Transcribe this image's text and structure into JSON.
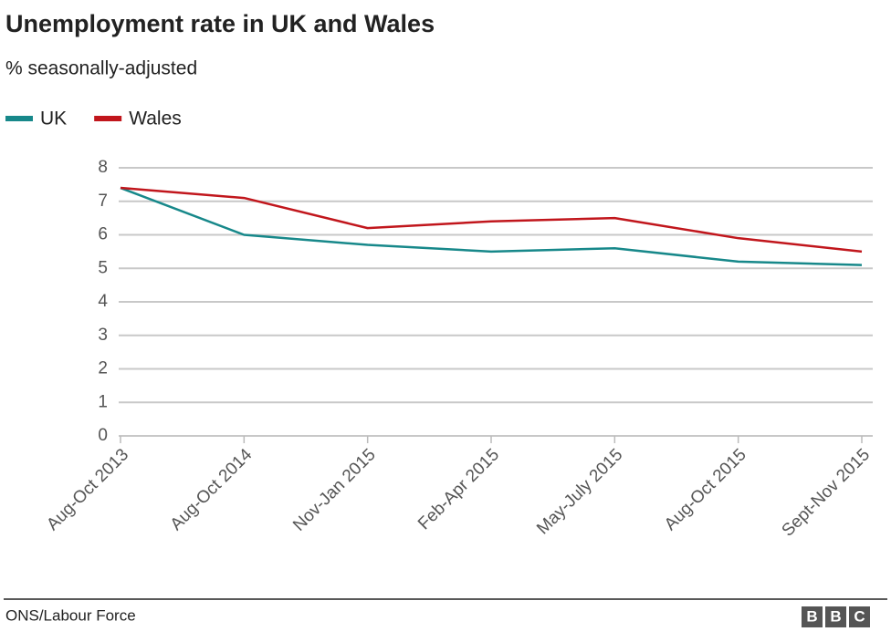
{
  "chart_data": {
    "type": "line",
    "title": "Unemployment rate in UK and Wales",
    "subtitle": "% seasonally-adjusted",
    "categories": [
      "Aug-Oct 2013",
      "Aug-Oct 2014",
      "Nov-Jan 2015",
      "Feb-Apr 2015",
      "May-July 2015",
      "Aug-Oct 2015",
      "Sept-Nov 2015"
    ],
    "series": [
      {
        "name": "UK",
        "color": "#17888a",
        "values": [
          7.4,
          6.0,
          5.7,
          5.5,
          5.6,
          5.2,
          5.1
        ]
      },
      {
        "name": "Wales",
        "color": "#c1161c",
        "values": [
          7.4,
          7.1,
          6.2,
          6.4,
          6.5,
          5.9,
          5.5
        ]
      }
    ],
    "ylim": [
      0,
      8
    ],
    "yticks": [
      0,
      1,
      2,
      3,
      4,
      5,
      6,
      7,
      8
    ],
    "grid": true,
    "legend": "top-left",
    "source": "ONS/Labour Force",
    "logo": [
      "B",
      "B",
      "C"
    ]
  }
}
